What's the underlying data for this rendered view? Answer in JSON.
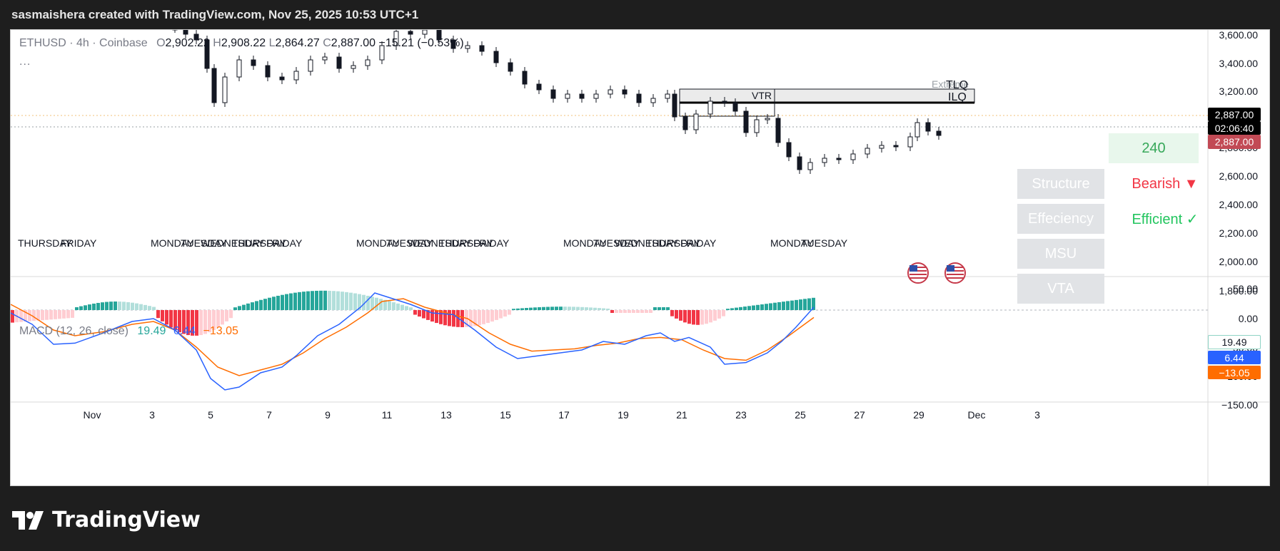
{
  "header": {
    "title": "sasmaishera created with TradingView.com, Nov 25, 2025 10:53 UTC+1"
  },
  "legend": {
    "symbol": "ETHUSD · 4h · Coinbase",
    "open_label": "O",
    "open": "2,902.22",
    "high_label": "H",
    "high": "2,908.22",
    "low_label": "L",
    "low": "2,864.27",
    "close_label": "C",
    "close": "2,887.00",
    "change": "−15.21 (−0.53%)",
    "more": "..."
  },
  "price_axis": {
    "ticks": [
      "3,600.00",
      "3,400.00",
      "3,200.00",
      "3,000.00",
      "2,800.00",
      "2,600.00",
      "2,400.00",
      "2,200.00",
      "2,000.00",
      "1,800.00"
    ],
    "last_price": "2,887.00",
    "countdown": "02:06:40",
    "mark_price": "2,887.00"
  },
  "zones": {
    "extreme": "Extreme",
    "tlq": "TLQ",
    "ilq": "ILQ",
    "vtr": "VTR"
  },
  "day_labels": [
    {
      "text": "THURSDAY"
    },
    {
      "text": "FRIDAY"
    },
    {
      "text": "MONDAY"
    },
    {
      "text": "TUESDAY"
    },
    {
      "text": "WEDNESDAY"
    },
    {
      "text": "THURSDAY"
    },
    {
      "text": "FRIDAY"
    },
    {
      "text": "MONDAY"
    },
    {
      "text": "TUESDAY"
    },
    {
      "text": "WEDNESDAY"
    },
    {
      "text": "THURSDAY"
    },
    {
      "text": "FRIDAY"
    },
    {
      "text": "MONDAY"
    },
    {
      "text": "TUESDAY"
    },
    {
      "text": "WEDNESDAY"
    },
    {
      "text": "THURSDAY"
    },
    {
      "text": "FRIDAY"
    },
    {
      "text": "MONDAY"
    },
    {
      "text": "TUESDAY"
    }
  ],
  "indicator_panel": {
    "timeframe": "240",
    "rows": [
      {
        "label": "Structure",
        "value": "Bearish ▼",
        "color": "#f23645"
      },
      {
        "label": "Effeciency",
        "value": "Efficient ✓",
        "color": "#22c55e"
      },
      {
        "label": "MSU",
        "value": ""
      },
      {
        "label": "VTA",
        "value": ""
      }
    ]
  },
  "macd": {
    "title": "MACD (12, 26, close)",
    "histogram": "19.49",
    "macd": "6.44",
    "signal": "−13.05",
    "axis_ticks": [
      "50.00",
      "0.00",
      "−50.00",
      "−100.00",
      "−150.00"
    ],
    "label_hist": "19.49",
    "label_macd": "6.44",
    "label_signal": "−13.05",
    "colors": {
      "macd": "#2962ff",
      "signal": "#ff6d00",
      "hist_up": "#26a69a",
      "hist_down": "#f23645"
    }
  },
  "time_axis": {
    "ticks": [
      "Nov",
      "3",
      "5",
      "7",
      "9",
      "11",
      "13",
      "15",
      "17",
      "19",
      "21",
      "23",
      "25",
      "27",
      "29",
      "Dec",
      "3"
    ]
  },
  "brand": {
    "name": "TradingView"
  }
}
